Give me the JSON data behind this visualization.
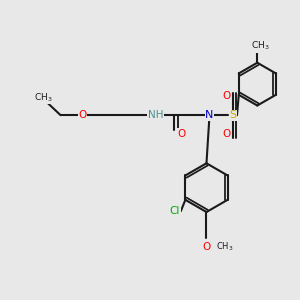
{
  "bg_color": "#e8e8e8",
  "bond_color": "#1a1a1a",
  "bond_width": 1.5,
  "dbo": 0.12,
  "atom_colors": {
    "O": "#ff0000",
    "N": "#0000cc",
    "S": "#ccaa00",
    "Cl": "#00aa00",
    "C": "#1a1a1a",
    "H": "#4a9090"
  },
  "font_size": 7.0
}
